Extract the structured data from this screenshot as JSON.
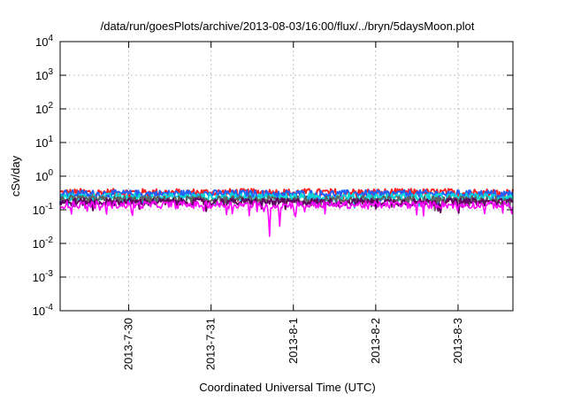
{
  "chart_data": {
    "type": "line",
    "title": "/data/run/goesPlots/archive/2013-08-03/16:00/flux/../bryn/5daysMoon.plot",
    "xlabel": "Coordinated Universal Time (UTC)",
    "ylabel": "cSv/day",
    "y_scale": "log",
    "ylim": [
      0.0001,
      10000
    ],
    "y_ticks": [
      {
        "value": 0.0001,
        "base": "10",
        "exp": "-4"
      },
      {
        "value": 0.001,
        "base": "10",
        "exp": "-3"
      },
      {
        "value": 0.01,
        "base": "10",
        "exp": "-2"
      },
      {
        "value": 0.1,
        "base": "10",
        "exp": "-1"
      },
      {
        "value": 1,
        "base": "10",
        "exp": "0"
      },
      {
        "value": 10,
        "base": "10",
        "exp": "1"
      },
      {
        "value": 100,
        "base": "10",
        "exp": "2"
      },
      {
        "value": 1000,
        "base": "10",
        "exp": "3"
      },
      {
        "value": 10000,
        "base": "10",
        "exp": "4"
      }
    ],
    "xlim": [
      "2013-07-29 04:00",
      "2013-08-03 16:00"
    ],
    "x_ticks": [
      "2013-7-30",
      "2013-7-31",
      "2013-8-1",
      "2013-8-2",
      "2013-8-3"
    ],
    "grid": true,
    "legend": "none",
    "series": [
      {
        "color": "#ff2020",
        "approx_level": 0.33
      },
      {
        "color": "#2060ff",
        "approx_level": 0.3
      },
      {
        "color": "#00d8d8",
        "approx_level": 0.24
      },
      {
        "color": "#606060",
        "approx_level": 0.2
      },
      {
        "color": "#600060",
        "approx_level": 0.17
      },
      {
        "color": "#ff00ff",
        "approx_level": 0.14,
        "dips": [
          {
            "x": "2013-07-31 17:00",
            "value": 0.012
          },
          {
            "x": "2013-07-31 20:00",
            "value": 0.03
          },
          {
            "x": "2013-07-30 01:00",
            "value": 0.05
          },
          {
            "x": "2013-08-01 00:30",
            "value": 0.04
          }
        ]
      }
    ]
  }
}
